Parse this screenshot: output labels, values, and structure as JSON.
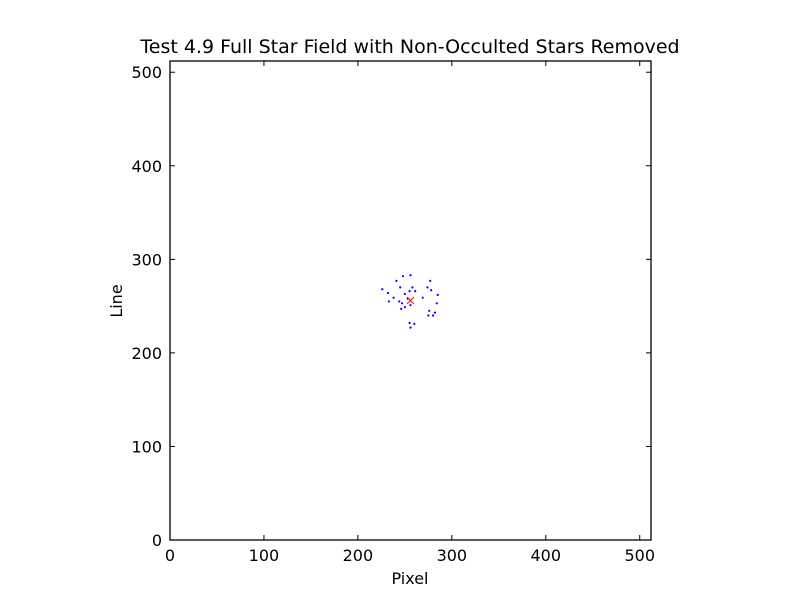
{
  "chart_data": {
    "type": "scatter",
    "title": "Test 4.9 Full Star Field with Non-Occulted Stars Removed",
    "xlabel": "Pixel",
    "ylabel": "Line",
    "xlim": [
      0,
      512
    ],
    "ylim": [
      0,
      512
    ],
    "xticks": [
      0,
      100,
      200,
      300,
      400,
      500
    ],
    "yticks": [
      0,
      100,
      200,
      300,
      400,
      500
    ],
    "grid": false,
    "series": [
      {
        "marker": "dot",
        "color": "#0000ff",
        "points": [
          [
            248,
            282
          ],
          [
            256,
            283
          ],
          [
            241,
            277
          ],
          [
            277,
            277
          ],
          [
            245,
            270
          ],
          [
            258,
            270
          ],
          [
            226,
            268
          ],
          [
            274,
            270
          ],
          [
            278,
            267
          ],
          [
            255,
            266
          ],
          [
            261,
            266
          ],
          [
            232,
            264
          ],
          [
            250,
            263
          ],
          [
            285,
            262
          ],
          [
            238,
            259
          ],
          [
            253,
            258
          ],
          [
            269,
            259
          ],
          [
            233,
            255
          ],
          [
            244,
            255
          ],
          [
            247,
            253
          ],
          [
            284,
            253
          ],
          [
            250,
            249
          ],
          [
            256,
            251
          ],
          [
            246,
            247
          ],
          [
            276,
            245
          ],
          [
            282,
            243
          ],
          [
            280,
            240
          ],
          [
            275,
            240
          ],
          [
            255,
            232
          ],
          [
            260,
            231
          ],
          [
            256,
            227
          ]
        ]
      },
      {
        "marker": "x",
        "color": "#ff0000",
        "points": [
          [
            256,
            256
          ]
        ]
      }
    ]
  }
}
